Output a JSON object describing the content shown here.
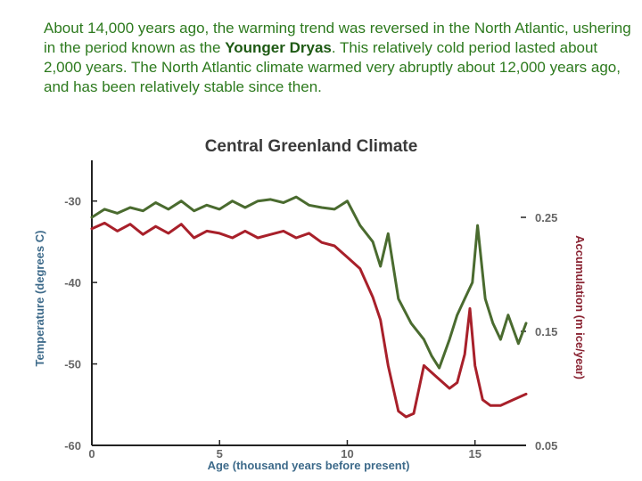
{
  "caption": {
    "part1": "About 14,000 years ago, the warming trend was reversed in the North Atlantic, ushering in the period known as the ",
    "emphasis": "Younger Dryas",
    "part2": ".  This relatively cold period lasted about 2,000 years.  The North Atlantic climate warmed very abruptly about 12,000 years ago, and has been relatively stable since then."
  },
  "colors": {
    "text_green": "#2d7a1e",
    "temperature_line": "#4a6b2f",
    "accumulation_line": "#a8202a",
    "axis": "#222222",
    "tick_text": "#666666",
    "left_label": "#3d6a8a",
    "right_label": "#8a2433"
  },
  "chart_data": {
    "type": "line",
    "title": "Central Greenland Climate",
    "xlabel": "Age (thousand years before present)",
    "ylabel_left": "Temperature (degrees C)",
    "ylabel_right": "Accumulation (m ice/year)",
    "xlim": [
      0,
      17
    ],
    "ylim_left": [
      -60,
      -25
    ],
    "ylim_right": [
      0.05,
      0.3
    ],
    "xticks": [
      0,
      5,
      10,
      15
    ],
    "xtick_labels": [
      "0",
      "5",
      "10",
      "15"
    ],
    "yticks_left": [
      -30,
      -40,
      -50,
      -60
    ],
    "ytick_labels_left": [
      "-30",
      "-40",
      "-50",
      "-60"
    ],
    "yticks_right": [
      0.25,
      0.15,
      0.05
    ],
    "ytick_labels_right": [
      "0.25",
      "0.15",
      "0.05"
    ],
    "series": [
      {
        "name": "Temperature",
        "axis": "left",
        "x": [
          0,
          0.5,
          1.0,
          1.5,
          2.0,
          2.5,
          3.0,
          3.5,
          4.0,
          4.5,
          5.0,
          5.5,
          6.0,
          6.5,
          7.0,
          7.5,
          8.0,
          8.5,
          9.0,
          9.5,
          10.0,
          10.5,
          11.0,
          11.3,
          11.6,
          12.0,
          12.5,
          13.0,
          13.3,
          13.6,
          14.0,
          14.3,
          14.6,
          14.9,
          15.1,
          15.4,
          15.7,
          16.0,
          16.3,
          16.7,
          17.0
        ],
        "values": [
          -32.0,
          -31.0,
          -31.5,
          -30.8,
          -31.2,
          -30.2,
          -31.0,
          -30.0,
          -31.2,
          -30.5,
          -31.0,
          -30.0,
          -30.8,
          -30.0,
          -29.8,
          -30.2,
          -29.5,
          -30.5,
          -30.8,
          -31.0,
          -30.0,
          -33.0,
          -35.0,
          -38.0,
          -34.0,
          -42.0,
          -45.0,
          -47.0,
          -49.0,
          -50.5,
          -47.0,
          -44.0,
          -42.0,
          -40.0,
          -33.0,
          -42.0,
          -45.0,
          -47.0,
          -44.0,
          -47.5,
          -45.0
        ]
      },
      {
        "name": "Accumulation",
        "axis": "right",
        "x": [
          0,
          0.5,
          1.0,
          1.5,
          2.0,
          2.5,
          3.0,
          3.5,
          4.0,
          4.5,
          5.0,
          5.5,
          6.0,
          6.5,
          7.0,
          7.5,
          8.0,
          8.5,
          9.0,
          9.5,
          10.0,
          10.5,
          11.0,
          11.3,
          11.6,
          12.0,
          12.3,
          12.6,
          13.0,
          13.5,
          14.0,
          14.3,
          14.6,
          14.8,
          15.0,
          15.3,
          15.6,
          16.0,
          16.5,
          17.0
        ],
        "values": [
          0.24,
          0.245,
          0.238,
          0.244,
          0.235,
          0.242,
          0.236,
          0.244,
          0.232,
          0.238,
          0.236,
          0.232,
          0.238,
          0.232,
          0.235,
          0.238,
          0.232,
          0.236,
          0.228,
          0.225,
          0.215,
          0.205,
          0.18,
          0.16,
          0.12,
          0.08,
          0.075,
          0.078,
          0.12,
          0.11,
          0.1,
          0.105,
          0.13,
          0.17,
          0.12,
          0.09,
          0.085,
          0.085,
          0.09,
          0.095
        ]
      }
    ]
  }
}
